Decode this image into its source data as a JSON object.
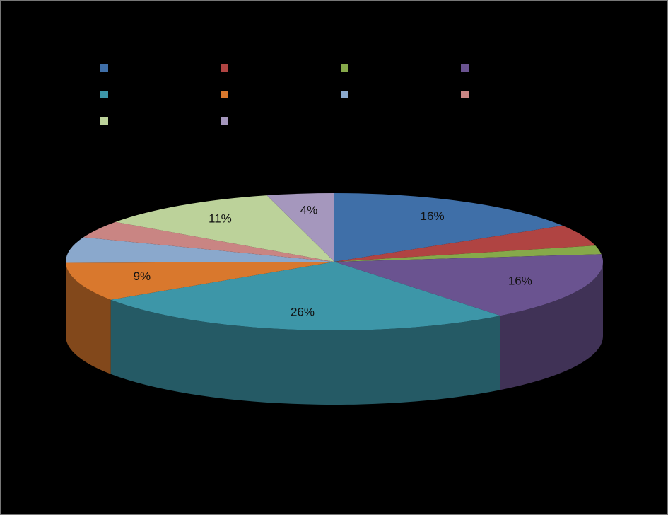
{
  "chart_data": {
    "type": "pie3d",
    "categories": [
      null,
      null,
      null,
      null,
      null,
      null,
      null,
      null,
      null,
      null
    ],
    "values": [
      16,
      5,
      2,
      16,
      26,
      9,
      6,
      4,
      11,
      4
    ],
    "value_labels": [
      "16%",
      null,
      null,
      "16%",
      "26%",
      "9%",
      null,
      null,
      "11%",
      "4%"
    ],
    "colors": [
      "#3f6fa8",
      "#b04442",
      "#86a94a",
      "#6a5390",
      "#3d96a8",
      "#d9782d",
      "#8aa8cc",
      "#c98583",
      "#bcd29a",
      "#a597bd"
    ],
    "legend": "top"
  }
}
